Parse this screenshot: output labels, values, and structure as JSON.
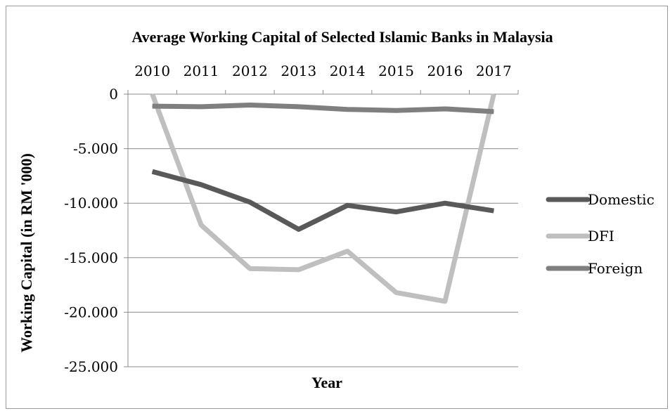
{
  "chart_data": {
    "type": "line",
    "title": "Average Working Capital of Selected Islamic Banks in Malaysia",
    "xlabel": "Year",
    "ylabel": "Working Capital (in RM '000)",
    "categories": [
      "2010",
      "2011",
      "2012",
      "2013",
      "2014",
      "2015",
      "2016",
      "2017"
    ],
    "ylim": [
      -25000,
      0
    ],
    "yticks": [
      0,
      -5000,
      -10000,
      -15000,
      -20000,
      -25000
    ],
    "ytick_labels": [
      "0",
      "-5.000",
      "-10.000",
      "-15.000",
      "-20.000",
      "-25.000"
    ],
    "x_axis_position": "top",
    "grid": true,
    "legend_position": "right",
    "series": [
      {
        "name": "Domestic",
        "color": "#595959",
        "values": [
          -7100,
          -8300,
          -9900,
          -12400,
          -10200,
          -10800,
          -10000,
          -10700
        ]
      },
      {
        "name": "DFI",
        "color": "#bfbfbf",
        "values": [
          0,
          -12000,
          -16000,
          -16100,
          -14400,
          -18200,
          -19000,
          0
        ]
      },
      {
        "name": "Foreign",
        "color": "#7f7f7f",
        "values": [
          -1100,
          -1150,
          -1000,
          -1150,
          -1400,
          -1500,
          -1350,
          -1600
        ]
      }
    ]
  }
}
